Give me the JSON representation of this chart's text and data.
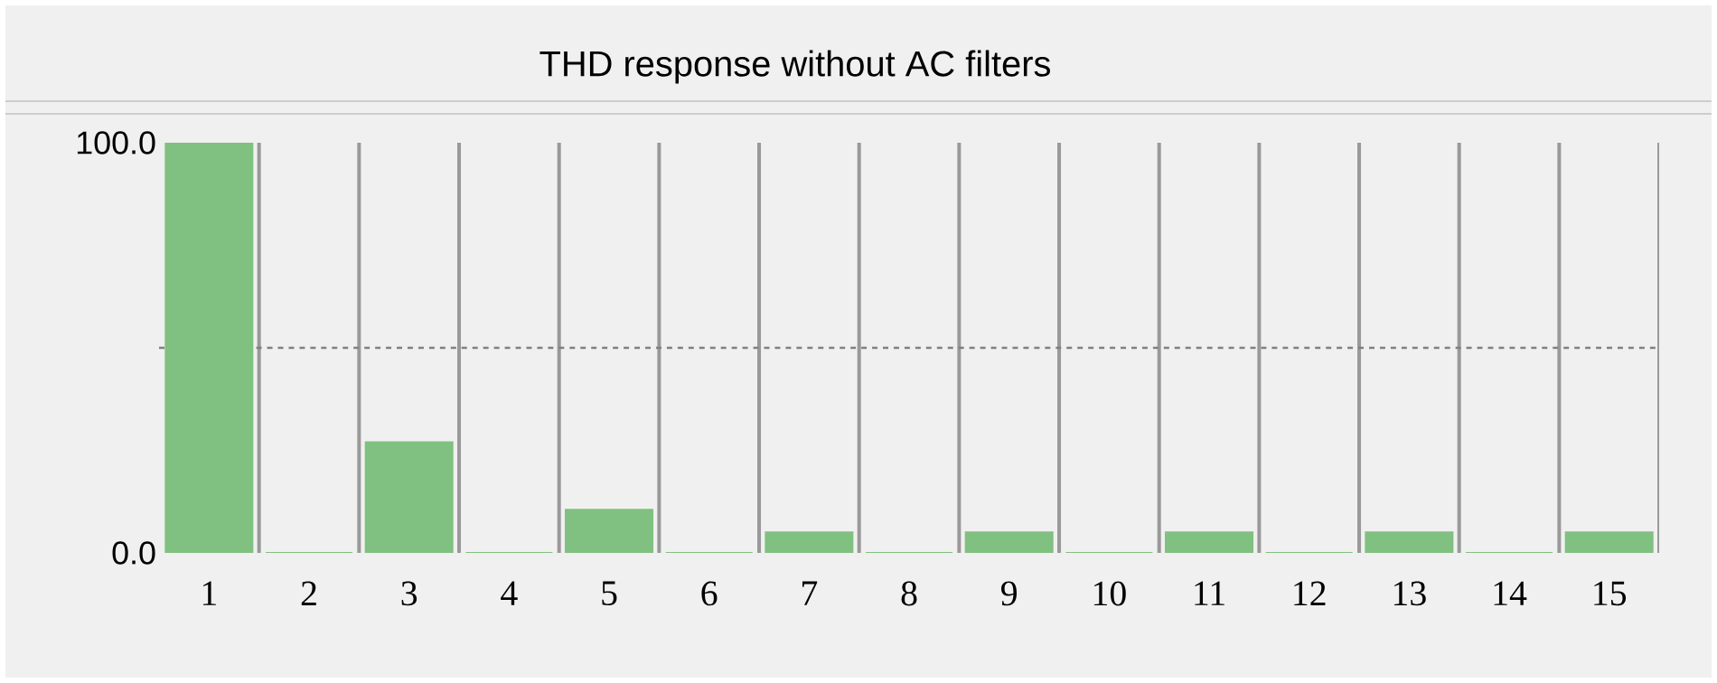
{
  "chart_data": {
    "type": "bar",
    "title": "THD response without AC filters",
    "categories": [
      "1",
      "2",
      "3",
      "4",
      "5",
      "6",
      "7",
      "8",
      "9",
      "10",
      "11",
      "12",
      "13",
      "14",
      "15"
    ],
    "values": [
      100,
      0,
      27,
      0,
      10.5,
      0,
      5,
      0,
      5,
      0,
      5,
      0,
      5,
      0,
      5
    ],
    "color": "#80c080",
    "ylim": [
      0,
      100
    ],
    "yticks": [
      {
        "value": 0,
        "label": "0.0"
      },
      {
        "value": 100,
        "label": "100.0"
      }
    ],
    "ref_lines": [
      {
        "axis": "y",
        "value": 50,
        "color": "#808080",
        "line_style": "dashed"
      }
    ],
    "grid": false
  }
}
